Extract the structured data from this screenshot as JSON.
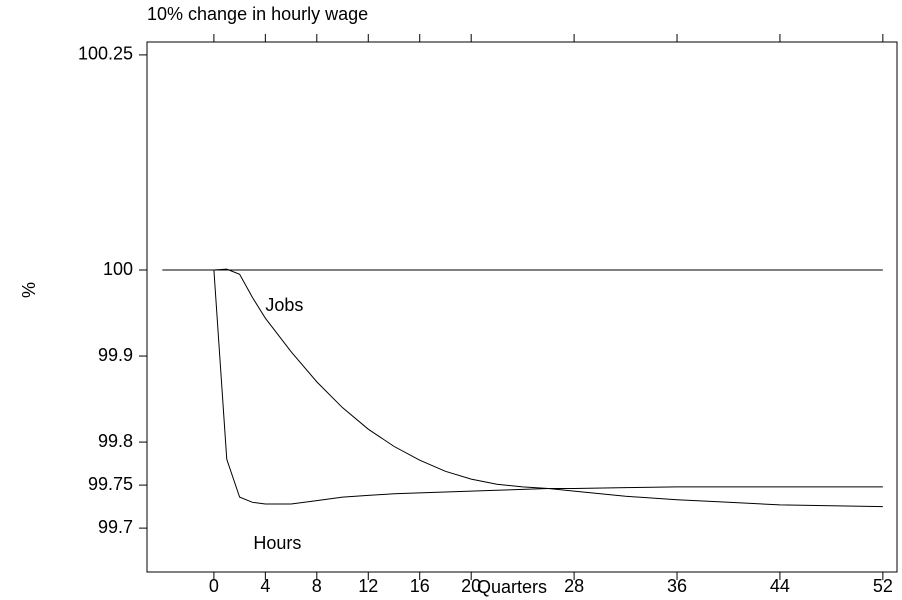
{
  "chart_data": {
    "type": "line",
    "title": "10% change in hourly wage",
    "x_label": "Quarters",
    "y_label": "%",
    "x": [
      -4,
      0,
      1,
      2,
      3,
      4,
      6,
      8,
      10,
      12,
      14,
      16,
      18,
      20,
      22,
      24,
      26,
      28,
      32,
      36,
      40,
      44,
      48,
      52
    ],
    "series": [
      {
        "name": "Jobs",
        "color": "#000000",
        "values": [
          100,
          100,
          100.001,
          99.995,
          99.968,
          99.944,
          99.905,
          99.87,
          99.84,
          99.815,
          99.795,
          99.779,
          99.766,
          99.757,
          99.751,
          99.748,
          99.746,
          99.743,
          99.737,
          99.733,
          99.73,
          99.727,
          99.726,
          99.725
        ]
      },
      {
        "name": "Hours",
        "color": "#000000",
        "values": [
          100,
          100,
          99.78,
          99.736,
          99.73,
          99.728,
          99.728,
          99.732,
          99.736,
          99.738,
          99.74,
          99.741,
          99.742,
          99.743,
          99.744,
          99.745,
          99.746,
          99.746,
          99.747,
          99.748,
          99.748,
          99.748,
          99.748,
          99.748
        ]
      }
    ],
    "reference_line": 100,
    "xlim": [
      -5.2,
      53.1
    ],
    "ylim": [
      99.649,
      100.265
    ],
    "xticks": [
      0,
      4,
      8,
      12,
      16,
      20,
      28,
      36,
      44,
      52
    ],
    "yticks": [
      99.7,
      99.75,
      99.8,
      99.9,
      100,
      100.25
    ],
    "grid": false
  }
}
